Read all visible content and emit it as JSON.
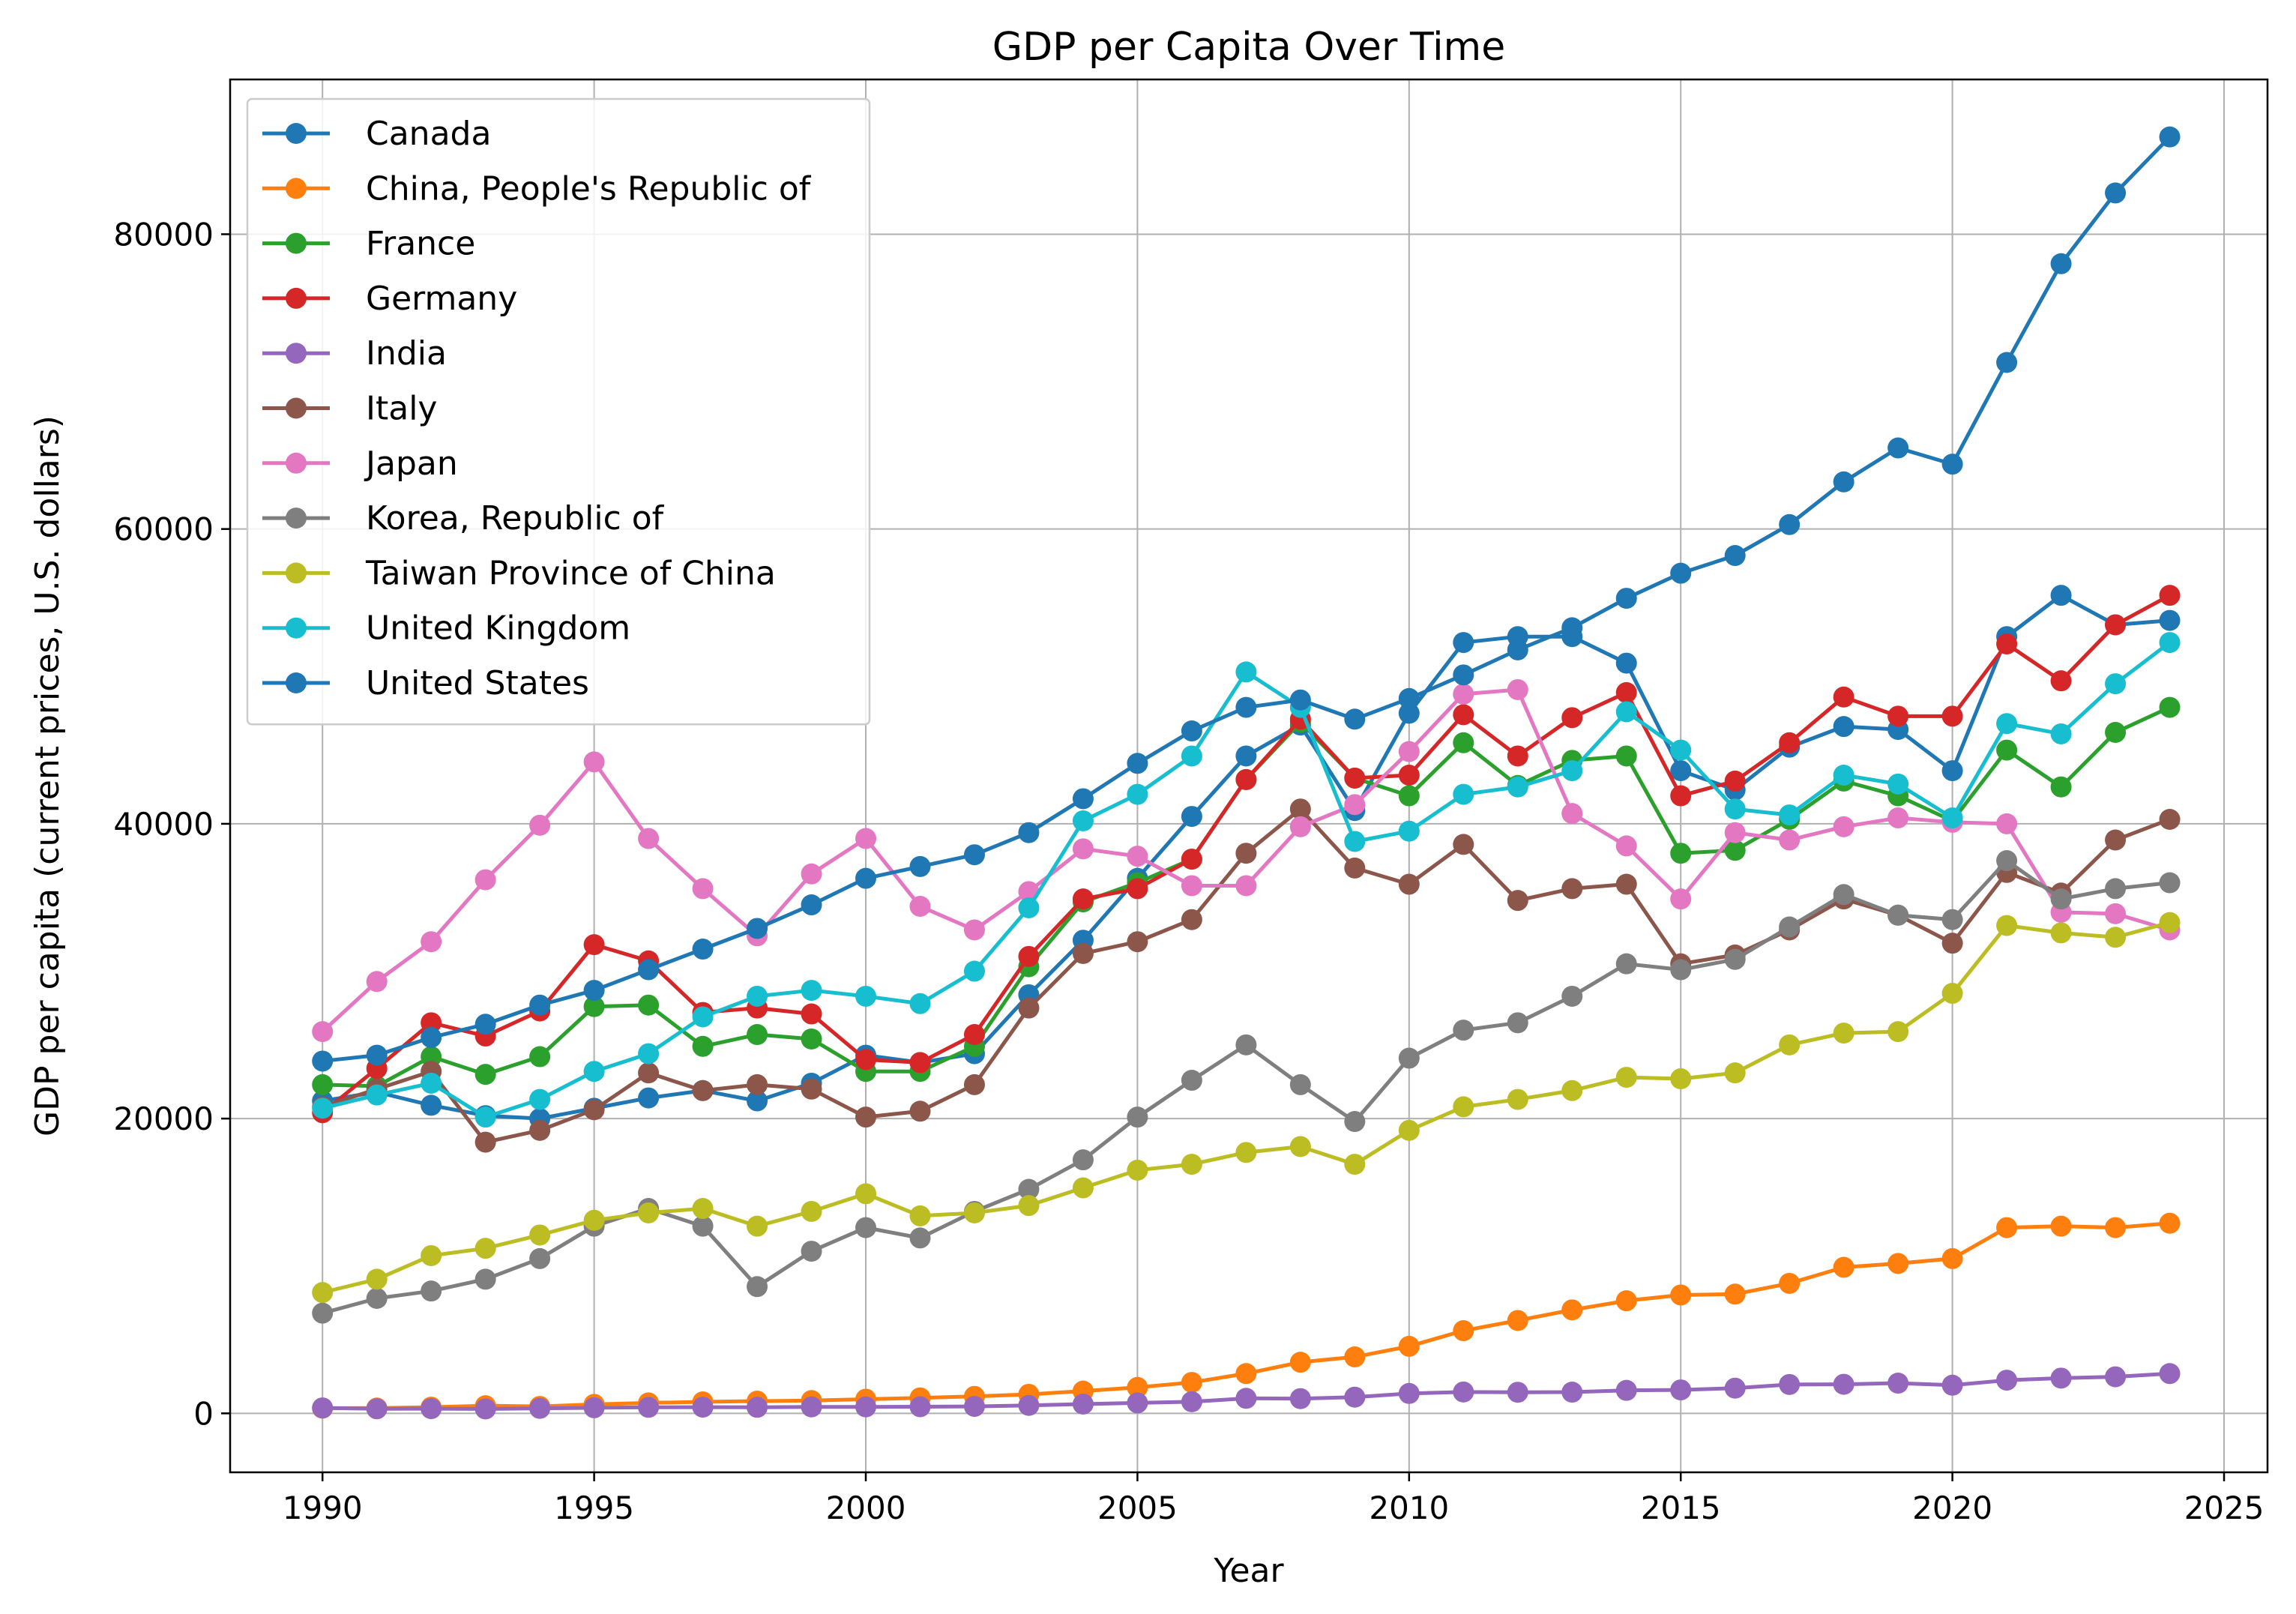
{
  "chart_data": {
    "type": "line",
    "title": "GDP per Capita Over Time",
    "xlabel": "Year",
    "ylabel": "GDP per capita (current prices, U.S. dollars)",
    "xlim": [
      1988.3,
      2025.8
    ],
    "ylim": [
      -4000,
      90500
    ],
    "xticks": [
      1990,
      1995,
      2000,
      2005,
      2010,
      2015,
      2020,
      2025
    ],
    "yticks": [
      0,
      20000,
      40000,
      60000,
      80000
    ],
    "grid": true,
    "legend_position": "upper left",
    "x": [
      1990,
      1991,
      1992,
      1993,
      1994,
      1995,
      1996,
      1997,
      1998,
      1999,
      2000,
      2001,
      2002,
      2003,
      2004,
      2005,
      2006,
      2007,
      2008,
      2009,
      2010,
      2011,
      2012,
      2013,
      2014,
      2015,
      2016,
      2017,
      2018,
      2019,
      2020,
      2021,
      2022,
      2023,
      2024
    ],
    "series": [
      {
        "name": "Canada",
        "color": "#1f77b4",
        "values": [
          21200,
          21800,
          20900,
          20200,
          20000,
          20700,
          21400,
          21900,
          21200,
          22400,
          24300,
          23800,
          24400,
          28400,
          32100,
          36300,
          40500,
          44600,
          46700,
          40900,
          47500,
          52300,
          52700,
          52700,
          50900,
          43600,
          42300,
          45200,
          46600,
          46400,
          43600,
          52700,
          55500,
          53500,
          53800
        ]
      },
      {
        "name": "China, People's Republic of",
        "color": "#ff7f0e",
        "values": [
          350,
          360,
          420,
          520,
          470,
          610,
          710,
          780,
          830,
          870,
          960,
          1050,
          1150,
          1290,
          1510,
          1760,
          2100,
          2700,
          3470,
          3830,
          4550,
          5610,
          6300,
          7020,
          7640,
          8030,
          8090,
          8820,
          9910,
          10170,
          10500,
          12600,
          12700,
          12600,
          12900
        ]
      },
      {
        "name": "France",
        "color": "#2ca02c",
        "values": [
          22300,
          22200,
          24200,
          23000,
          24200,
          27600,
          27700,
          24900,
          25700,
          25400,
          23200,
          23200,
          24900,
          30300,
          34700,
          36000,
          37600,
          43000,
          46900,
          43100,
          41900,
          45500,
          42600,
          44300,
          44600,
          38000,
          38200,
          40300,
          42900,
          41900,
          40200,
          45000,
          42500,
          46200,
          47900
        ]
      },
      {
        "name": "Germany",
        "color": "#d62728",
        "values": [
          20400,
          23400,
          26500,
          25600,
          27300,
          31800,
          30700,
          27200,
          27500,
          27100,
          24000,
          23800,
          25700,
          31000,
          34900,
          35600,
          37600,
          43000,
          47100,
          43100,
          43300,
          47400,
          44600,
          47200,
          48900,
          41900,
          42900,
          45500,
          48600,
          47300,
          47300,
          52200,
          49700,
          53500,
          55500
        ]
      },
      {
        "name": "India",
        "color": "#9467bd",
        "values": [
          370,
          310,
          320,
          300,
          340,
          380,
          410,
          420,
          410,
          440,
          440,
          450,
          470,
          540,
          630,
          710,
          790,
          1020,
          1000,
          1100,
          1350,
          1450,
          1430,
          1440,
          1560,
          1590,
          1710,
          1960,
          1970,
          2050,
          1910,
          2250,
          2390,
          2480,
          2700
        ]
      },
      {
        "name": "Italy",
        "color": "#8c564b",
        "values": [
          20800,
          22000,
          23200,
          18400,
          19200,
          20600,
          23100,
          21900,
          22300,
          22000,
          20100,
          20500,
          22300,
          27500,
          31200,
          32000,
          33500,
          38000,
          41000,
          37000,
          35900,
          38600,
          34800,
          35600,
          35900,
          30500,
          31100,
          32800,
          34900,
          33800,
          31900,
          36700,
          35300,
          38900,
          40300
        ]
      },
      {
        "name": "Japan",
        "color": "#e377c2",
        "values": [
          25900,
          29300,
          32000,
          36200,
          39900,
          44200,
          39000,
          35600,
          32400,
          36600,
          39000,
          34400,
          32800,
          35400,
          38300,
          37800,
          35800,
          35800,
          39800,
          41300,
          44900,
          48800,
          49100,
          40700,
          38500,
          34900,
          39400,
          38900,
          39800,
          40400,
          40100,
          40000,
          34000,
          33900,
          32800
        ]
      },
      {
        "name": "Korea, Republic of",
        "color": "#7f7f7f",
        "values": [
          6800,
          7800,
          8300,
          9100,
          10500,
          12700,
          13900,
          12700,
          8600,
          11000,
          12600,
          11900,
          13700,
          15200,
          17200,
          20100,
          22600,
          25000,
          22300,
          19800,
          24100,
          26000,
          26500,
          28300,
          30500,
          30100,
          30800,
          33000,
          35200,
          33800,
          33500,
          37500,
          34900,
          35600,
          36000
        ]
      },
      {
        "name": "Taiwan Province of China",
        "color": "#bcbd22",
        "values": [
          8200,
          9100,
          10700,
          11200,
          12100,
          13100,
          13600,
          13900,
          12700,
          13700,
          14900,
          13400,
          13600,
          14100,
          15300,
          16500,
          16900,
          17700,
          18100,
          16900,
          19200,
          20800,
          21300,
          21900,
          22800,
          22700,
          23100,
          25000,
          25800,
          25900,
          28500,
          33100,
          32600,
          32300,
          33300
        ]
      },
      {
        "name": "United Kingdom",
        "color": "#17becf",
        "values": [
          20700,
          21600,
          22400,
          20100,
          21300,
          23200,
          24400,
          26900,
          28300,
          28700,
          28300,
          27800,
          30000,
          34300,
          40200,
          42000,
          44600,
          50300,
          47900,
          38800,
          39500,
          42000,
          42500,
          43600,
          47600,
          45000,
          41000,
          40600,
          43300,
          42700,
          40400,
          46800,
          46100,
          49500,
          52300
        ]
      },
      {
        "name": "United States",
        "color": "#1f77b4",
        "values": [
          23900,
          24300,
          25500,
          26400,
          27700,
          28700,
          30100,
          31500,
          32900,
          34500,
          36300,
          37100,
          37900,
          39400,
          41700,
          44100,
          46300,
          47900,
          48400,
          47100,
          48500,
          50100,
          51800,
          53300,
          55300,
          57000,
          58200,
          60300,
          63200,
          65500,
          64400,
          71300,
          78000,
          82800,
          86600
        ]
      }
    ]
  }
}
